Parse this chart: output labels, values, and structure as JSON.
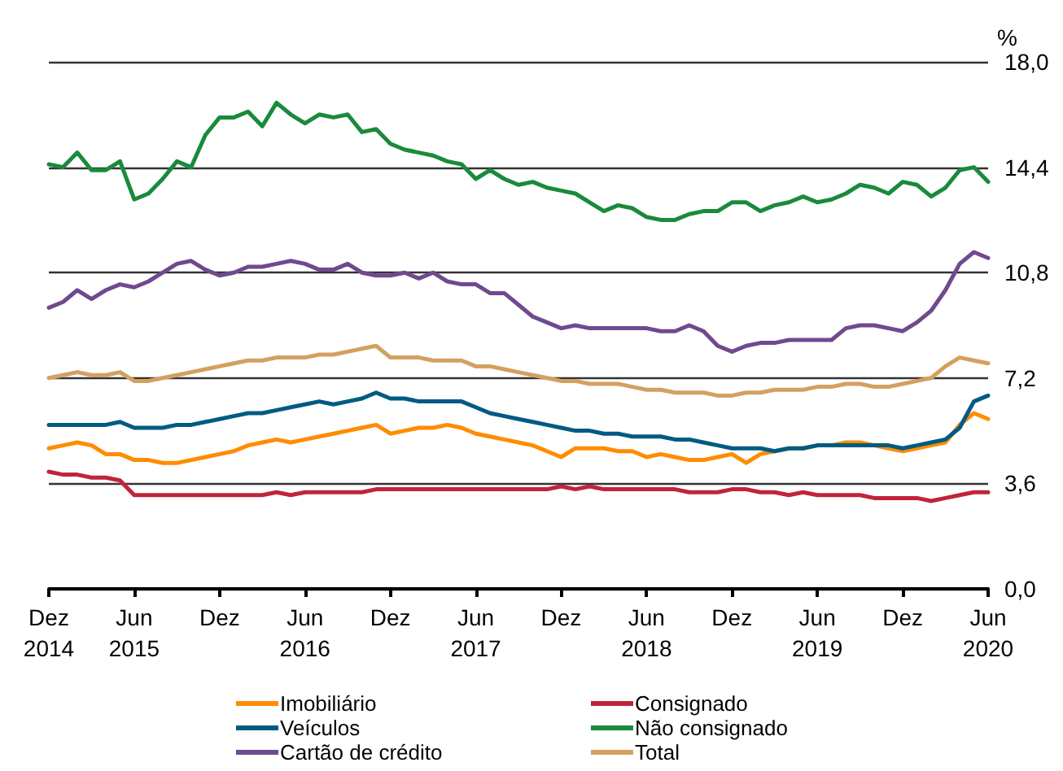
{
  "chart_data": {
    "type": "line",
    "ylabel": "%",
    "categories": [
      "Dez\n2014",
      null,
      null,
      null,
      null,
      null,
      "Jun\n2015",
      null,
      null,
      null,
      null,
      null,
      "Dez",
      null,
      null,
      null,
      null,
      null,
      "Jun\n2016",
      null,
      null,
      null,
      null,
      null,
      "Dez",
      null,
      null,
      null,
      null,
      null,
      "Jun\n2017",
      null,
      null,
      null,
      null,
      null,
      "Dez",
      null,
      null,
      null,
      null,
      null,
      "Jun\n2018",
      null,
      null,
      null,
      null,
      null,
      "Dez",
      null,
      null,
      null,
      null,
      null,
      "Jun\n2019",
      null,
      null,
      null,
      null,
      null,
      "Dez",
      null,
      null,
      null,
      null,
      null,
      "Jun\n2020"
    ],
    "series": [
      {
        "name": "Imobiliário",
        "color": "#ff8c00",
        "values": [
          4.8,
          4.9,
          5.0,
          4.9,
          4.6,
          4.6,
          4.4,
          4.4,
          4.3,
          4.3,
          4.4,
          4.5,
          4.6,
          4.7,
          4.9,
          5.0,
          5.1,
          5.0,
          5.1,
          5.2,
          5.3,
          5.4,
          5.5,
          5.6,
          5.3,
          5.4,
          5.5,
          5.5,
          5.6,
          5.5,
          5.3,
          5.2,
          5.1,
          5.0,
          4.9,
          4.7,
          4.5,
          4.8,
          4.8,
          4.8,
          4.7,
          4.7,
          4.5,
          4.6,
          4.5,
          4.4,
          4.4,
          4.5,
          4.6,
          4.3,
          4.6,
          4.7,
          4.8,
          4.8,
          4.9,
          4.9,
          5.0,
          5.0,
          4.9,
          4.8,
          4.7,
          4.8,
          4.9,
          5.0,
          5.6,
          6.0,
          5.8
        ]
      },
      {
        "name": "Consignado",
        "color": "#c0243c",
        "values": [
          4.0,
          3.9,
          3.9,
          3.8,
          3.8,
          3.7,
          3.2,
          3.2,
          3.2,
          3.2,
          3.2,
          3.2,
          3.2,
          3.2,
          3.2,
          3.2,
          3.3,
          3.2,
          3.3,
          3.3,
          3.3,
          3.3,
          3.3,
          3.4,
          3.4,
          3.4,
          3.4,
          3.4,
          3.4,
          3.4,
          3.4,
          3.4,
          3.4,
          3.4,
          3.4,
          3.4,
          3.5,
          3.4,
          3.5,
          3.4,
          3.4,
          3.4,
          3.4,
          3.4,
          3.4,
          3.3,
          3.3,
          3.3,
          3.4,
          3.4,
          3.3,
          3.3,
          3.2,
          3.3,
          3.2,
          3.2,
          3.2,
          3.2,
          3.1,
          3.1,
          3.1,
          3.1,
          3.0,
          3.1,
          3.2,
          3.3,
          3.3
        ]
      },
      {
        "name": "Veículos",
        "color": "#005b82",
        "values": [
          5.6,
          5.6,
          5.6,
          5.6,
          5.6,
          5.7,
          5.5,
          5.5,
          5.5,
          5.6,
          5.6,
          5.7,
          5.8,
          5.9,
          6.0,
          6.0,
          6.1,
          6.2,
          6.3,
          6.4,
          6.3,
          6.4,
          6.5,
          6.7,
          6.5,
          6.5,
          6.4,
          6.4,
          6.4,
          6.4,
          6.2,
          6.0,
          5.9,
          5.8,
          5.7,
          5.6,
          5.5,
          5.4,
          5.4,
          5.3,
          5.3,
          5.2,
          5.2,
          5.2,
          5.1,
          5.1,
          5.0,
          4.9,
          4.8,
          4.8,
          4.8,
          4.7,
          4.8,
          4.8,
          4.9,
          4.9,
          4.9,
          4.9,
          4.9,
          4.9,
          4.8,
          4.9,
          5.0,
          5.1,
          5.5,
          6.4,
          6.6
        ]
      },
      {
        "name": "Não consignado",
        "color": "#1a8a3c",
        "values": [
          14.5,
          14.4,
          14.9,
          14.3,
          14.3,
          14.6,
          13.3,
          13.5,
          14.0,
          14.6,
          14.4,
          15.5,
          16.1,
          16.1,
          16.3,
          15.8,
          16.6,
          16.2,
          15.9,
          16.2,
          16.1,
          16.2,
          15.6,
          15.7,
          15.2,
          15.0,
          14.9,
          14.8,
          14.6,
          14.5,
          14.0,
          14.3,
          14.0,
          13.8,
          13.9,
          13.7,
          13.6,
          13.5,
          13.2,
          12.9,
          13.1,
          13.0,
          12.7,
          12.6,
          12.6,
          12.8,
          12.9,
          12.9,
          13.2,
          13.2,
          12.9,
          13.1,
          13.2,
          13.4,
          13.2,
          13.3,
          13.5,
          13.8,
          13.7,
          13.5,
          13.9,
          13.8,
          13.4,
          13.7,
          14.3,
          14.4,
          13.9
        ]
      },
      {
        "name": "Cartão de crédito",
        "color": "#6f4a8e",
        "values": [
          9.6,
          9.8,
          10.2,
          9.9,
          10.2,
          10.4,
          10.3,
          10.5,
          10.8,
          11.1,
          11.2,
          10.9,
          10.7,
          10.8,
          11.0,
          11.0,
          11.1,
          11.2,
          11.1,
          10.9,
          10.9,
          11.1,
          10.8,
          10.7,
          10.7,
          10.8,
          10.6,
          10.8,
          10.5,
          10.4,
          10.4,
          10.1,
          10.1,
          9.7,
          9.3,
          9.1,
          8.9,
          9.0,
          8.9,
          8.9,
          8.9,
          8.9,
          8.9,
          8.8,
          8.8,
          9.0,
          8.8,
          8.3,
          8.1,
          8.3,
          8.4,
          8.4,
          8.5,
          8.5,
          8.5,
          8.5,
          8.9,
          9.0,
          9.0,
          8.9,
          8.8,
          9.1,
          9.5,
          10.2,
          11.1,
          11.5,
          11.3
        ]
      },
      {
        "name": "Total",
        "color": "#d4a060",
        "values": [
          7.2,
          7.3,
          7.4,
          7.3,
          7.3,
          7.4,
          7.1,
          7.1,
          7.2,
          7.3,
          7.4,
          7.5,
          7.6,
          7.7,
          7.8,
          7.8,
          7.9,
          7.9,
          7.9,
          8.0,
          8.0,
          8.1,
          8.2,
          8.3,
          7.9,
          7.9,
          7.9,
          7.8,
          7.8,
          7.8,
          7.6,
          7.6,
          7.5,
          7.4,
          7.3,
          7.2,
          7.1,
          7.1,
          7.0,
          7.0,
          7.0,
          6.9,
          6.8,
          6.8,
          6.7,
          6.7,
          6.7,
          6.6,
          6.6,
          6.7,
          6.7,
          6.8,
          6.8,
          6.8,
          6.9,
          6.9,
          7.0,
          7.0,
          6.9,
          6.9,
          7.0,
          7.1,
          7.2,
          7.6,
          7.9,
          7.8,
          7.7
        ]
      }
    ],
    "ylim": [
      0,
      18
    ],
    "yticks": [
      {
        "value": 0,
        "label": "0,0"
      },
      {
        "value": 3.6,
        "label": "3,6"
      },
      {
        "value": 7.2,
        "label": "7,2"
      },
      {
        "value": 10.8,
        "label": "10,8"
      },
      {
        "value": 14.4,
        "label": "14,4"
      },
      {
        "value": 18,
        "label": "18,0"
      }
    ],
    "grid": "y",
    "legend": "bottom",
    "marker": "none",
    "line_style": "solid"
  }
}
